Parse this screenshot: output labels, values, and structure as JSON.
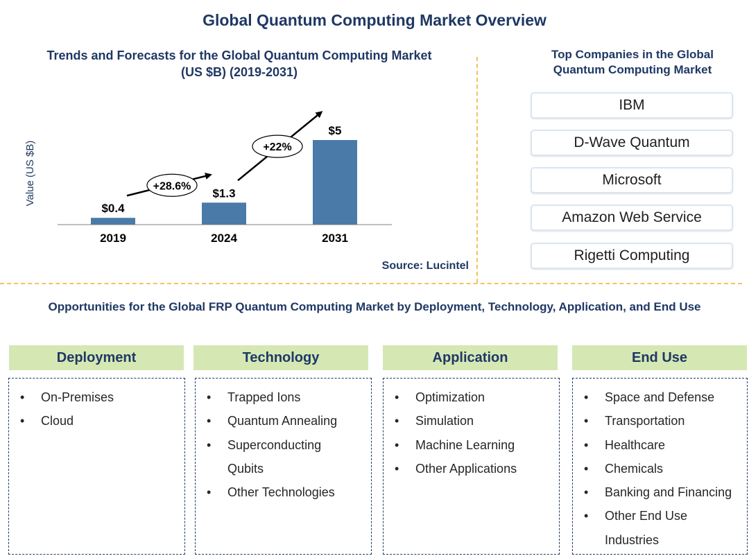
{
  "page": {
    "title": "Global Quantum Computing Market Overview",
    "source": "Source: Lucintel"
  },
  "chart_data": {
    "type": "bar",
    "title": "Trends and Forecasts for the Global Quantum Computing Market (US $B) (2019-2031)",
    "title_lines": [
      "Trends and Forecasts for the Global Quantum Computing Market",
      "(US $B) (2019-2031)"
    ],
    "ylabel": "Value (US $B)",
    "xlabel": "",
    "categories": [
      "2019",
      "2024",
      "2031"
    ],
    "values": [
      0.4,
      1.3,
      5
    ],
    "value_labels": [
      "$0.4",
      "$1.3",
      "$5"
    ],
    "ylim": [
      0,
      5
    ],
    "grid": false,
    "bar_color": "#4a7aa7",
    "annotations": [
      {
        "from": "2019",
        "to": "2024",
        "label": "+28.6%"
      },
      {
        "from": "2024",
        "to": "2031",
        "label": "+22%"
      }
    ]
  },
  "companies": {
    "title_lines": [
      "Top Companies in the Global",
      "Quantum Computing Market"
    ],
    "items": [
      "IBM",
      "D-Wave Quantum",
      "Microsoft",
      "Amazon Web Service",
      "Rigetti Computing"
    ]
  },
  "opportunities": {
    "title": "Opportunities for the Global FRP Quantum Computing Market by Deployment, Technology, Application, and End Use",
    "categories": [
      {
        "name": "Deployment",
        "items": [
          "On-Premises",
          "Cloud"
        ]
      },
      {
        "name": "Technology",
        "items": [
          "Trapped Ions",
          "Quantum Annealing",
          "Superconducting Qubits",
          "Other Technologies"
        ]
      },
      {
        "name": "Application",
        "items": [
          "Optimization",
          "Simulation",
          "Machine Learning",
          "Other Applications"
        ]
      },
      {
        "name": "End Use",
        "items": [
          "Space and Defense",
          "Transportation",
          "Healthcare",
          "Chemicals",
          "Banking and Financing",
          "Other End Use Industries"
        ]
      }
    ]
  },
  "colors": {
    "title": "#1f3864",
    "bar": "#4a7aa7",
    "header_bg": "#d5e8b4",
    "divider": "#f2c45a"
  }
}
